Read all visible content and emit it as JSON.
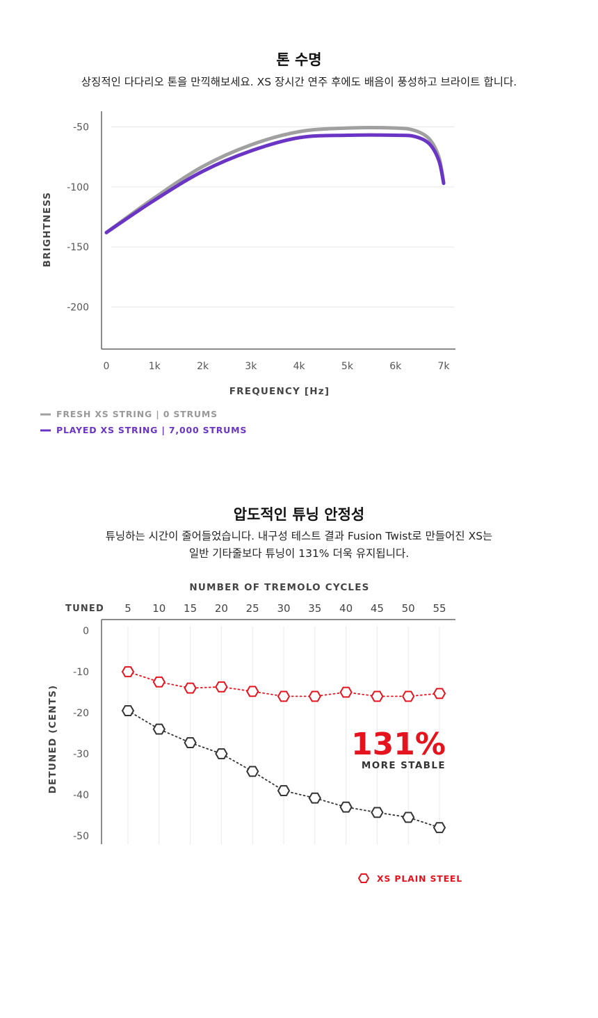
{
  "section1": {
    "title": "톤 수명",
    "description": "상징적인 다다리오 톤을 만끽해보세요. XS 장시간 연주 후에도 배음이 풍성하고 브라이트 합니다."
  },
  "section2": {
    "title": "압도적인 튜닝 안정성",
    "description_line1": "튜닝하는 시간이 줄어들었습니다. 내구성 테스트 결과 Fusion Twist로 만들어진 XS는",
    "description_line2": "일반 기타줄보다 튜닝이 131% 더욱 유지됩니다."
  },
  "chart_data": [
    {
      "type": "line",
      "xlabel": "FREQUENCY [Hz]",
      "ylabel": "BRIGHTNESS",
      "x_ticks": [
        "0",
        "1k",
        "2k",
        "3k",
        "4k",
        "5k",
        "6k",
        "7k"
      ],
      "y_ticks": [
        "-50",
        "-100",
        "-150",
        "-200"
      ],
      "xlim": [
        0,
        7000
      ],
      "ylim": [
        -235,
        -37
      ],
      "grid": "horizontal",
      "legend_position": "bottom-left",
      "series": [
        {
          "name": "FRESH XS STRING | 0 STRUMS",
          "color": "#a0a0a0",
          "x": [
            0,
            1000,
            2000,
            3000,
            4000,
            5000,
            6000,
            6400,
            6700,
            6900,
            7000
          ],
          "y": [
            -138,
            -109,
            -83,
            -65,
            -54,
            -51,
            -51,
            -53,
            -60,
            -75,
            -96
          ]
        },
        {
          "name": "PLAYED XS STRING | 7,000 STRUMS",
          "color": "#6a35c4",
          "x": [
            0,
            1000,
            2000,
            3000,
            4000,
            5000,
            6000,
            6400,
            6700,
            6900,
            7000
          ],
          "y": [
            -138,
            -111,
            -87,
            -70,
            -59,
            -57,
            -57,
            -58,
            -64,
            -78,
            -97
          ]
        }
      ]
    },
    {
      "type": "line",
      "title": "NUMBER OF TREMOLO CYCLES",
      "ylabel": "DETUNED (CENTS)",
      "x_first_label": "TUNED",
      "x_ticks": [
        "5",
        "10",
        "15",
        "20",
        "25",
        "30",
        "35",
        "40",
        "45",
        "50",
        "55"
      ],
      "y_ticks": [
        "0",
        "-10",
        "-20",
        "-30",
        "-40",
        "-50"
      ],
      "xlim": [
        0,
        55
      ],
      "ylim": [
        -52,
        2
      ],
      "grid": "vertical",
      "legend_position": "bottom-right",
      "annotation": {
        "value": "131%",
        "text": "MORE STABLE",
        "color": "#e4131e"
      },
      "series": [
        {
          "name": "XS PLAIN STEEL",
          "color": "#e4131e",
          "x": [
            5,
            10,
            15,
            20,
            25,
            30,
            35,
            40,
            45,
            50,
            55
          ],
          "y": [
            -10,
            -12.5,
            -14,
            -13.7,
            -14.8,
            -16,
            -16,
            -15,
            -16,
            -16,
            -15.3
          ]
        },
        {
          "color": "#333333",
          "x": [
            5,
            10,
            15,
            20,
            25,
            30,
            35,
            40,
            45,
            50,
            55
          ],
          "y": [
            -19.5,
            -24,
            -27.3,
            -30,
            -34.3,
            -39,
            -40.8,
            -43,
            -44.3,
            -45.5,
            -48
          ]
        }
      ]
    }
  ]
}
